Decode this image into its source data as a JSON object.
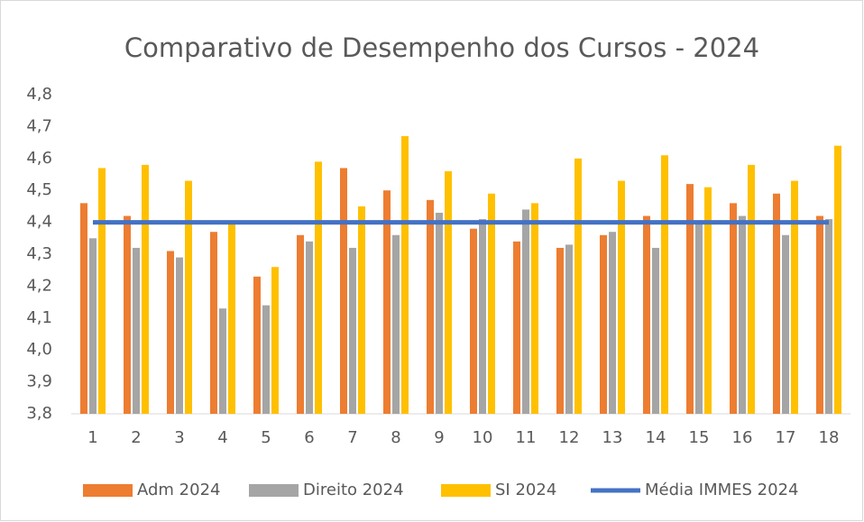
{
  "chart_data": {
    "type": "bar",
    "title": "Comparativo de Desempenho dos Cursos - 2024",
    "categories": [
      "1",
      "2",
      "3",
      "4",
      "5",
      "6",
      "7",
      "8",
      "9",
      "10",
      "11",
      "12",
      "13",
      "14",
      "15",
      "16",
      "17",
      "18"
    ],
    "series": [
      {
        "name": "Adm 2024",
        "color": "#ED7D31",
        "type": "bar",
        "values": [
          4.46,
          4.42,
          4.31,
          4.37,
          4.23,
          4.36,
          4.57,
          4.5,
          4.47,
          4.38,
          4.34,
          4.32,
          4.36,
          4.42,
          4.52,
          4.46,
          4.49,
          4.42
        ]
      },
      {
        "name": "Direito 2024",
        "color": "#A5A5A5",
        "type": "bar",
        "values": [
          4.35,
          4.32,
          4.29,
          4.13,
          4.14,
          4.34,
          4.32,
          4.36,
          4.43,
          4.41,
          4.44,
          4.33,
          4.37,
          4.32,
          4.4,
          4.42,
          4.36,
          4.41
        ]
      },
      {
        "name": "SI 2024",
        "color": "#FFC000",
        "type": "bar",
        "values": [
          4.57,
          4.58,
          4.53,
          4.4,
          4.26,
          4.59,
          4.45,
          4.67,
          4.56,
          4.49,
          4.46,
          4.6,
          4.53,
          4.61,
          4.51,
          4.58,
          4.53,
          4.64
        ]
      },
      {
        "name": "Média IMMES 2024",
        "color": "#4472C4",
        "type": "line",
        "values": [
          4.4,
          4.4,
          4.4,
          4.4,
          4.4,
          4.4,
          4.4,
          4.4,
          4.4,
          4.4,
          4.4,
          4.4,
          4.4,
          4.4,
          4.4,
          4.4,
          4.4,
          4.4
        ]
      }
    ],
    "ylim": [
      3.8,
      4.8
    ],
    "yticks": [
      {
        "value": 3.8,
        "label": "3,8"
      },
      {
        "value": 3.9,
        "label": "3,9"
      },
      {
        "value": 4.0,
        "label": "4,0"
      },
      {
        "value": 4.1,
        "label": "4,1"
      },
      {
        "value": 4.2,
        "label": "4,2"
      },
      {
        "value": 4.3,
        "label": "4,3"
      },
      {
        "value": 4.4,
        "label": "4,4"
      },
      {
        "value": 4.5,
        "label": "4,5"
      },
      {
        "value": 4.6,
        "label": "4,6"
      },
      {
        "value": 4.7,
        "label": "4,7"
      },
      {
        "value": 4.8,
        "label": "4,8"
      }
    ],
    "legend": "bottom"
  }
}
